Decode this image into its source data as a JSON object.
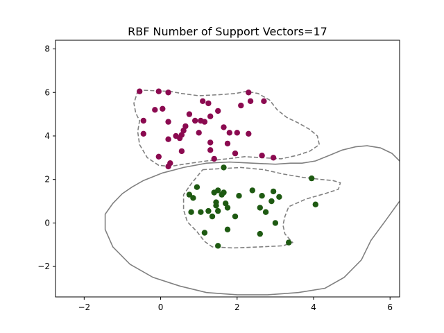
{
  "chart_data": {
    "type": "scatter",
    "title": "RBF Number of Support Vectors=17",
    "xlabel": "",
    "ylabel": "",
    "xlim": [
      -2.75,
      6.25
    ],
    "ylim": [
      -3.4,
      8.4
    ],
    "x_ticks": [
      -2,
      0,
      2,
      4,
      6
    ],
    "y_ticks": [
      -2,
      0,
      2,
      4,
      6,
      8
    ],
    "x_tick_labels": [
      "−2",
      "0",
      "2",
      "4",
      "6"
    ],
    "y_tick_labels": [
      "−2",
      "0",
      "2",
      "4",
      "6",
      "8"
    ],
    "grid": false,
    "legend": "none",
    "colors": {
      "class_a": "#8b0a50",
      "class_b": "#1e5a12",
      "boundary": "#808080"
    },
    "series": [
      {
        "color_key": "class_a",
        "points": [
          [
            -0.55,
            6.05
          ],
          [
            -0.05,
            6.05
          ],
          [
            0.2,
            6.0
          ],
          [
            2.3,
            6.0
          ],
          [
            2.35,
            5.6
          ],
          [
            2.1,
            5.4
          ],
          [
            2.7,
            5.6
          ],
          [
            1.1,
            5.6
          ],
          [
            1.25,
            5.5
          ],
          [
            1.5,
            5.15
          ],
          [
            -0.15,
            5.2
          ],
          [
            0.05,
            5.25
          ],
          [
            0.75,
            5.0
          ],
          [
            1.3,
            4.9
          ],
          [
            -0.45,
            4.7
          ],
          [
            0.2,
            4.65
          ],
          [
            0.9,
            4.7
          ],
          [
            1.05,
            4.7
          ],
          [
            1.15,
            4.65
          ],
          [
            0.65,
            4.45
          ],
          [
            0.6,
            4.25
          ],
          [
            1.65,
            4.4
          ],
          [
            1.8,
            4.15
          ],
          [
            2.0,
            4.15
          ],
          [
            2.3,
            4.1
          ],
          [
            1.0,
            4.15
          ],
          [
            0.4,
            4.0
          ],
          [
            0.55,
            4.05
          ],
          [
            -0.45,
            4.1
          ],
          [
            0.5,
            3.9
          ],
          [
            0.2,
            3.85
          ],
          [
            1.3,
            3.7
          ],
          [
            1.75,
            3.65
          ],
          [
            0.55,
            3.3
          ],
          [
            1.3,
            3.35
          ],
          [
            1.95,
            3.2
          ],
          [
            2.65,
            3.1
          ],
          [
            2.95,
            3.0
          ],
          [
            -0.05,
            3.05
          ],
          [
            1.4,
            2.95
          ],
          [
            0.25,
            2.75
          ],
          [
            0.2,
            2.6
          ]
        ]
      },
      {
        "color_key": "class_b",
        "points": [
          [
            1.65,
            2.55
          ],
          [
            3.95,
            2.05
          ],
          [
            0.95,
            1.65
          ],
          [
            2.4,
            1.5
          ],
          [
            2.95,
            1.45
          ],
          [
            1.5,
            1.5
          ],
          [
            1.4,
            1.4
          ],
          [
            1.65,
            1.4
          ],
          [
            1.6,
            1.3
          ],
          [
            0.75,
            1.3
          ],
          [
            2.65,
            1.25
          ],
          [
            2.05,
            1.25
          ],
          [
            3.1,
            1.2
          ],
          [
            0.85,
            1.15
          ],
          [
            2.9,
            1.0
          ],
          [
            1.45,
            0.95
          ],
          [
            1.7,
            0.9
          ],
          [
            4.05,
            0.85
          ],
          [
            1.45,
            0.8
          ],
          [
            1.75,
            0.7
          ],
          [
            2.6,
            0.7
          ],
          [
            1.5,
            0.55
          ],
          [
            0.8,
            0.5
          ],
          [
            1.05,
            0.5
          ],
          [
            1.25,
            0.55
          ],
          [
            2.75,
            0.5
          ],
          [
            1.35,
            0.3
          ],
          [
            1.95,
            0.3
          ],
          [
            3.0,
            0.0
          ],
          [
            1.75,
            -0.3
          ],
          [
            1.15,
            -0.45
          ],
          [
            2.6,
            -0.5
          ],
          [
            3.35,
            -0.9
          ],
          [
            1.5,
            -1.05
          ]
        ]
      }
    ],
    "contours": [
      {
        "style": "dashed",
        "points": [
          [
            -0.6,
            6.05
          ],
          [
            -0.45,
            6.1
          ],
          [
            0.25,
            6.05
          ],
          [
            0.55,
            5.95
          ],
          [
            1.0,
            5.85
          ],
          [
            1.55,
            5.9
          ],
          [
            1.95,
            5.95
          ],
          [
            2.25,
            6.05
          ],
          [
            2.55,
            5.95
          ],
          [
            2.85,
            5.65
          ],
          [
            3.05,
            5.2
          ],
          [
            3.3,
            4.85
          ],
          [
            3.6,
            4.6
          ],
          [
            3.9,
            4.3
          ],
          [
            4.1,
            4.0
          ],
          [
            4.15,
            3.6
          ],
          [
            3.9,
            3.3
          ],
          [
            3.55,
            3.1
          ],
          [
            3.15,
            2.95
          ],
          [
            2.65,
            3.0
          ],
          [
            2.2,
            3.05
          ],
          [
            1.75,
            2.95
          ],
          [
            1.2,
            2.85
          ],
          [
            0.6,
            2.7
          ],
          [
            0.25,
            2.6
          ],
          [
            -0.05,
            2.65
          ],
          [
            -0.35,
            3.0
          ],
          [
            -0.55,
            3.6
          ],
          [
            -0.6,
            4.2
          ],
          [
            -0.55,
            4.7
          ],
          [
            -0.65,
            5.05
          ],
          [
            -0.7,
            5.5
          ],
          [
            -0.6,
            6.05
          ]
        ]
      },
      {
        "style": "dashed",
        "points": [
          [
            1.1,
            2.45
          ],
          [
            1.6,
            2.5
          ],
          [
            2.1,
            2.55
          ],
          [
            2.7,
            2.45
          ],
          [
            3.2,
            2.25
          ],
          [
            3.7,
            2.1
          ],
          [
            4.2,
            2.0
          ],
          [
            4.5,
            1.95
          ],
          [
            4.7,
            1.85
          ],
          [
            4.65,
            1.55
          ],
          [
            4.3,
            1.35
          ],
          [
            3.8,
            1.1
          ],
          [
            3.35,
            0.75
          ],
          [
            3.25,
            0.3
          ],
          [
            3.2,
            -0.1
          ],
          [
            3.25,
            -0.5
          ],
          [
            3.45,
            -0.9
          ],
          [
            3.2,
            -1.05
          ],
          [
            2.6,
            -1.1
          ],
          [
            1.9,
            -1.15
          ],
          [
            1.35,
            -1.1
          ],
          [
            1.15,
            -0.85
          ],
          [
            0.95,
            -0.4
          ],
          [
            0.7,
            0.05
          ],
          [
            0.6,
            0.6
          ],
          [
            0.6,
            1.3
          ],
          [
            0.8,
            1.8
          ],
          [
            1.1,
            2.45
          ]
        ]
      },
      {
        "style": "solid",
        "points": [
          [
            6.25,
            2.85
          ],
          [
            6.05,
            3.2
          ],
          [
            5.75,
            3.45
          ],
          [
            5.4,
            3.55
          ],
          [
            5.1,
            3.5
          ],
          [
            4.75,
            3.35
          ],
          [
            4.4,
            3.1
          ],
          [
            4.05,
            2.85
          ],
          [
            3.7,
            2.75
          ],
          [
            3.4,
            2.75
          ],
          [
            3.0,
            2.7
          ],
          [
            2.4,
            2.75
          ],
          [
            1.8,
            2.8
          ],
          [
            1.2,
            2.75
          ],
          [
            0.6,
            2.55
          ],
          [
            0.05,
            2.3
          ],
          [
            -0.45,
            1.95
          ],
          [
            -0.75,
            1.65
          ],
          [
            -1.0,
            1.35
          ],
          [
            -1.25,
            0.9
          ],
          [
            -1.45,
            0.4
          ],
          [
            -1.45,
            -0.3
          ],
          [
            -1.25,
            -1.1
          ],
          [
            -0.8,
            -1.9
          ],
          [
            -0.2,
            -2.5
          ],
          [
            0.5,
            -2.9
          ],
          [
            1.2,
            -3.2
          ],
          [
            2.0,
            -3.3
          ],
          [
            2.8,
            -3.3
          ],
          [
            3.6,
            -3.2
          ],
          [
            4.3,
            -3.0
          ],
          [
            4.8,
            -2.5
          ],
          [
            5.25,
            -1.7
          ],
          [
            5.5,
            -0.8
          ],
          [
            5.9,
            0.15
          ],
          [
            6.25,
            1.0
          ]
        ]
      }
    ]
  }
}
